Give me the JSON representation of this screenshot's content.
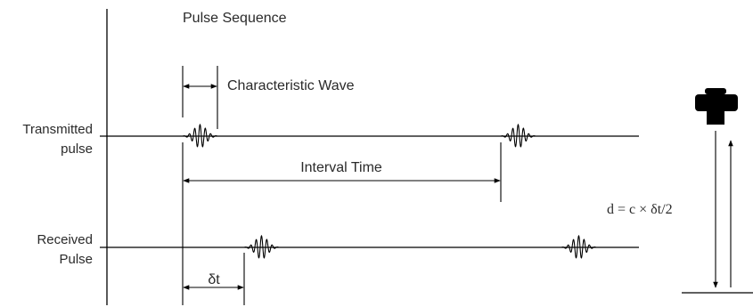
{
  "title": "Pulse Sequence",
  "labels": {
    "characteristic_wave": "Characteristic Wave",
    "interval_time": "Interval Time",
    "delta_t": "δt",
    "transmitted_line1": "Transmitted",
    "transmitted_line2": "pulse",
    "received_line1": "Received",
    "received_line2": "Pulse",
    "formula": "d = c × δt/2"
  },
  "icons": {
    "sensor": "ultrasonic-sensor-icon"
  }
}
